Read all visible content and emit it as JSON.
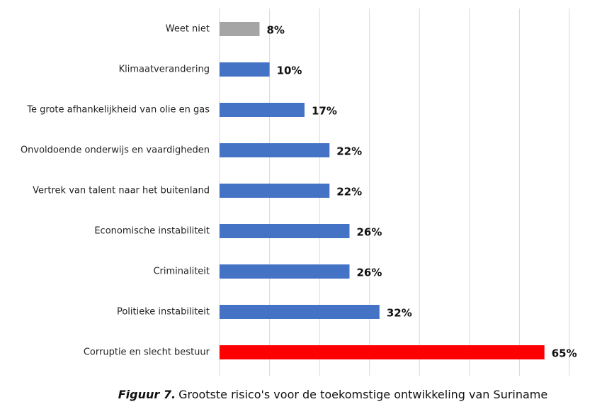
{
  "chart_data": {
    "type": "hbar",
    "categories": [
      "Weet niet",
      "Klimaatverandering",
      "Te grote afhankelijkheid van olie en gas",
      "Onvoldoende onderwijs en vaardigheden",
      "Vertrek van talent naar het buitenland",
      "Economische instabiliteit",
      "Criminaliteit",
      "Politieke instabiliteit",
      "Corruptie en slecht bestuur"
    ],
    "values": [
      8,
      10,
      17,
      22,
      22,
      26,
      26,
      32,
      65
    ],
    "value_labels": [
      "8%",
      "10%",
      "17%",
      "22%",
      "22%",
      "26%",
      "26%",
      "32%",
      "65%"
    ],
    "colors": [
      "#a5a5a5",
      "#4472c4",
      "#4472c4",
      "#4472c4",
      "#4472c4",
      "#4472c4",
      "#4472c4",
      "#4472c4",
      "#ff0000"
    ],
    "xlim": [
      0,
      70
    ],
    "xticks": [
      0,
      10,
      20,
      30,
      40,
      50,
      60,
      70
    ],
    "grid": true,
    "caption_label": "Figuur 7.",
    "caption": "Grootste risico's voor de toekomstige ontwikkeling van Suriname"
  }
}
